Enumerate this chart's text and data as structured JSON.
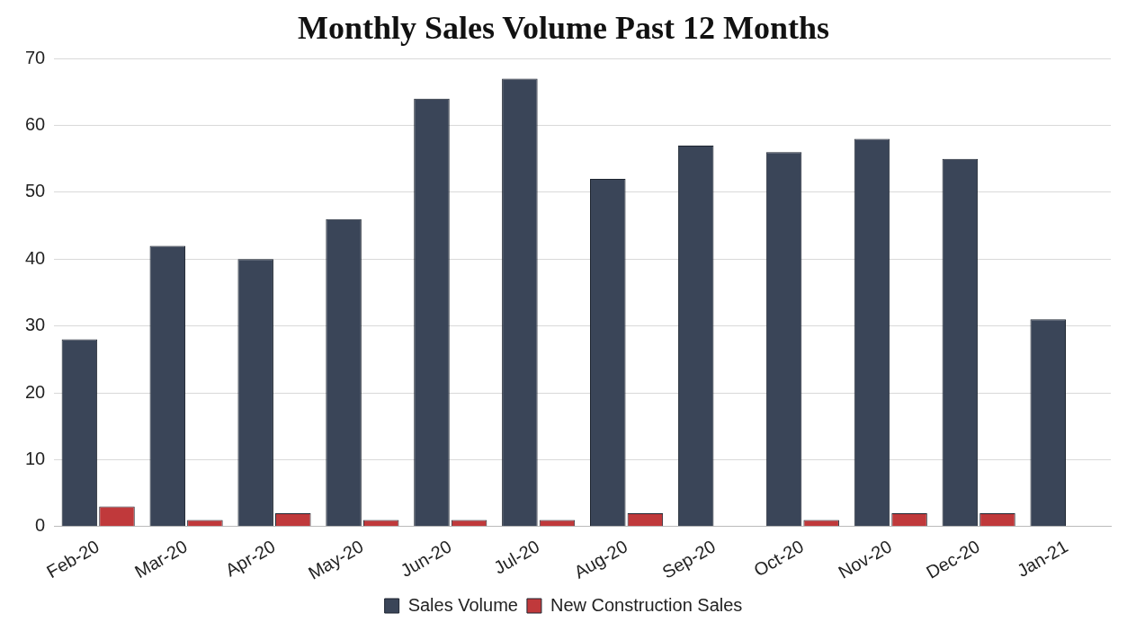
{
  "chart_data": {
    "type": "bar",
    "title": "Monthly Sales Volume Past 12 Months",
    "categories": [
      "Feb-20",
      "Mar-20",
      "Apr-20",
      "May-20",
      "Jun-20",
      "Jul-20",
      "Aug-20",
      "Sep-20",
      "Oct-20",
      "Nov-20",
      "Dec-20",
      "Jan-21"
    ],
    "series": [
      {
        "name": "Sales Volume",
        "color": "#3a4558",
        "values": [
          28,
          42,
          40,
          46,
          64,
          67,
          52,
          57,
          56,
          58,
          55,
          31
        ]
      },
      {
        "name": "New Construction Sales",
        "color": "#c0393b",
        "values": [
          3,
          1,
          2,
          1,
          1,
          1,
          2,
          0,
          1,
          2,
          2,
          0
        ]
      }
    ],
    "ylim": [
      0,
      70
    ],
    "yticks": [
      0,
      10,
      20,
      30,
      40,
      50,
      60,
      70
    ],
    "grid": "y",
    "legend": "bottom"
  }
}
